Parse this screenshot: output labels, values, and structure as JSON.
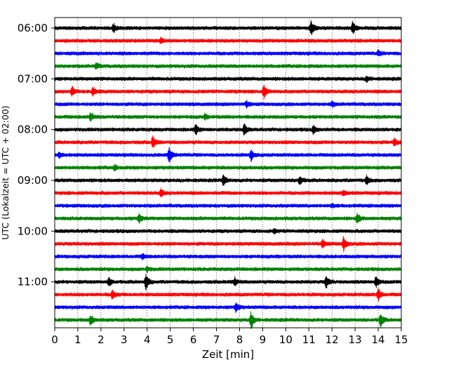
{
  "chart_data": {
    "type": "line",
    "title": "",
    "xlabel": "Zeit  [min]",
    "ylabel": "UTC (Lokalzeit = UTC + 02:00)",
    "xlim": [
      0,
      15
    ],
    "x_ticks": [
      "0",
      "1",
      "2",
      "3",
      "4",
      "5",
      "6",
      "7",
      "8",
      "9",
      "10",
      "11",
      "12",
      "13",
      "14",
      "15"
    ],
    "y_ticks": [
      "06:00",
      "07:00",
      "08:00",
      "09:00",
      "10:00",
      "11:00"
    ],
    "grid": "vertical dotted at each minute",
    "trace_interval_min": 15,
    "first_trace": "06:00",
    "trace_colors": [
      "#000000",
      "#ff0000",
      "#0000ff",
      "#008000"
    ],
    "traces": [
      {
        "start": "06:00",
        "events": [
          [
            2.55,
            1.0
          ],
          [
            11.1,
            1.6
          ],
          [
            12.9,
            1.3
          ]
        ]
      },
      {
        "start": "06:15",
        "events": [
          [
            4.6,
            0.5
          ]
        ]
      },
      {
        "start": "06:30",
        "events": [
          [
            14.0,
            0.5
          ]
        ]
      },
      {
        "start": "06:45",
        "events": [
          [
            1.8,
            0.6
          ]
        ]
      },
      {
        "start": "07:00",
        "events": [
          [
            13.5,
            0.6
          ]
        ]
      },
      {
        "start": "07:15",
        "events": [
          [
            0.75,
            1.0
          ],
          [
            1.65,
            1.0
          ],
          [
            9.05,
            1.5
          ]
        ]
      },
      {
        "start": "07:30",
        "events": [
          [
            8.3,
            0.6
          ],
          [
            12.0,
            0.5
          ]
        ]
      },
      {
        "start": "07:45",
        "events": [
          [
            1.55,
            0.9
          ],
          [
            6.5,
            0.5
          ]
        ]
      },
      {
        "start": "08:00",
        "events": [
          [
            6.1,
            1.1
          ],
          [
            8.2,
            1.2
          ],
          [
            11.2,
            0.9
          ]
        ]
      },
      {
        "start": "08:15",
        "events": [
          [
            4.25,
            1.3
          ],
          [
            14.7,
            0.8
          ]
        ]
      },
      {
        "start": "08:30",
        "events": [
          [
            0.2,
            0.6
          ],
          [
            4.95,
            1.7
          ],
          [
            8.5,
            1.2
          ]
        ]
      },
      {
        "start": "08:45",
        "events": [
          [
            2.6,
            0.5
          ]
        ]
      },
      {
        "start": "09:00",
        "events": [
          [
            7.3,
            1.3
          ],
          [
            10.6,
            1.0
          ],
          [
            13.5,
            0.9
          ]
        ]
      },
      {
        "start": "09:15",
        "events": [
          [
            4.6,
            0.8
          ],
          [
            12.5,
            0.5
          ]
        ]
      },
      {
        "start": "09:30",
        "events": [
          [
            12.0,
            0.4
          ]
        ]
      },
      {
        "start": "09:45",
        "events": [
          [
            3.65,
            1.1
          ],
          [
            13.1,
            1.0
          ]
        ]
      },
      {
        "start": "10:00",
        "events": [
          [
            9.5,
            0.4
          ]
        ]
      },
      {
        "start": "10:15",
        "events": [
          [
            11.6,
            0.8
          ],
          [
            12.5,
            1.5
          ]
        ]
      },
      {
        "start": "10:30",
        "events": [
          [
            3.8,
            0.5
          ]
        ]
      },
      {
        "start": "10:45",
        "events": [
          [
            4.0,
            0.5
          ]
        ]
      },
      {
        "start": "11:00",
        "events": [
          [
            2.35,
            0.9
          ],
          [
            3.95,
            1.7
          ],
          [
            7.8,
            0.9
          ],
          [
            11.75,
            1.3
          ],
          [
            13.9,
            1.2
          ]
        ]
      },
      {
        "start": "11:15",
        "events": [
          [
            2.5,
            1.0
          ],
          [
            14.0,
            1.3
          ]
        ]
      },
      {
        "start": "11:30",
        "events": [
          [
            7.85,
            1.0
          ]
        ]
      },
      {
        "start": "11:45",
        "events": [
          [
            1.55,
            1.1
          ],
          [
            8.5,
            1.9
          ],
          [
            14.1,
            1.6
          ]
        ]
      }
    ]
  }
}
